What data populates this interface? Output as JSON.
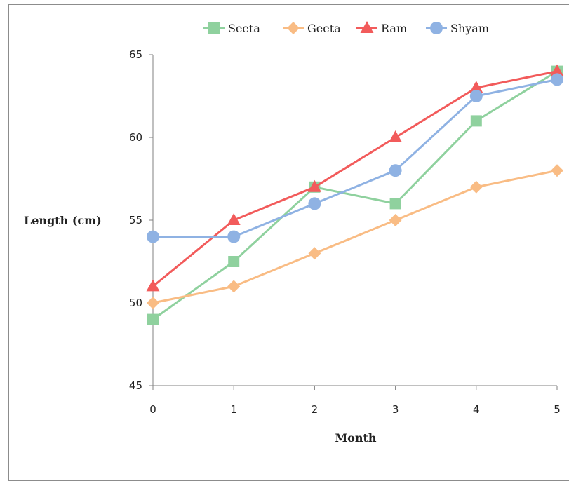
{
  "chart_data": {
    "type": "line",
    "title": "",
    "xlabel": "Month",
    "ylabel": "Length (cm)",
    "x": [
      0,
      1,
      2,
      3,
      4,
      5
    ],
    "xlim": [
      0,
      5
    ],
    "ylim": [
      45,
      65
    ],
    "yticks": [
      45,
      50,
      55,
      60,
      65
    ],
    "grid": false,
    "legend_position": "top",
    "series": [
      {
        "name": "Seeta",
        "color": "#8fd19e",
        "marker": "square",
        "values": [
          49,
          52.5,
          57,
          56,
          61,
          64
        ]
      },
      {
        "name": "Geeta",
        "color": "#f9bc84",
        "marker": "diamond",
        "values": [
          50,
          51,
          53,
          55,
          57,
          58
        ]
      },
      {
        "name": "Ram",
        "color": "#f25b5b",
        "marker": "triangle",
        "values": [
          51,
          55,
          57,
          60,
          63,
          64
        ]
      },
      {
        "name": "Shyam",
        "color": "#8fb2e3",
        "marker": "circle",
        "values": [
          54,
          54,
          56,
          58,
          62.5,
          63.5
        ]
      }
    ]
  }
}
